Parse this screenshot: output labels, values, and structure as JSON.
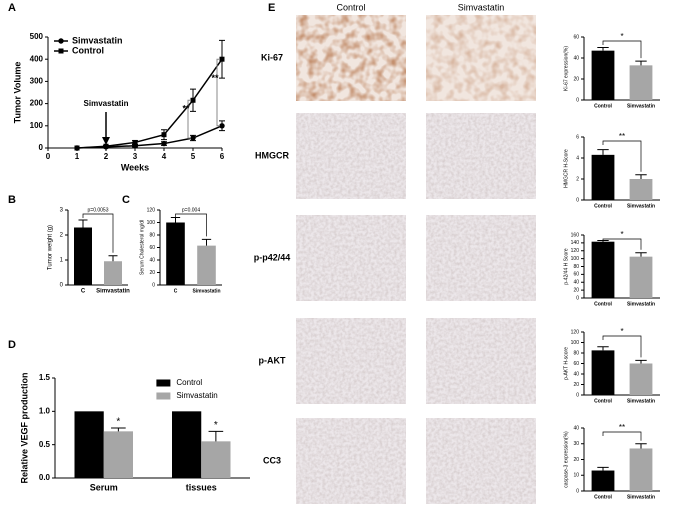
{
  "panel_labels": [
    "A",
    "B",
    "C",
    "D",
    "E"
  ],
  "images": {
    "columns": [
      "Control",
      "Simvastatin"
    ],
    "rows": [
      "Ki-67",
      "HMGCR",
      "p-p42/44",
      "p-AKT",
      "CC3"
    ]
  },
  "chart_data": [
    {
      "type": "line",
      "y_label": "Tumor Volume",
      "x_label": "Weeks",
      "x": [
        1,
        2,
        3,
        4,
        5,
        6
      ],
      "series": [
        {
          "name": "Simvastatin",
          "color": "#000000",
          "marker": "circle",
          "values": [
            0,
            5,
            10,
            20,
            45,
            100
          ],
          "errors": [
            0,
            3,
            5,
            8,
            12,
            22
          ]
        },
        {
          "name": "Control",
          "color": "#000000",
          "marker": "square",
          "values": [
            0,
            8,
            25,
            60,
            215,
            400
          ],
          "errors": [
            0,
            4,
            8,
            22,
            50,
            85
          ]
        }
      ],
      "xlim": [
        0,
        6
      ],
      "xticks": [
        0,
        1,
        2,
        3,
        4,
        5,
        6
      ],
      "ylim": [
        0,
        500
      ],
      "yticks": [
        0,
        100,
        200,
        300,
        400,
        500
      ],
      "legend": "upper left",
      "annotations": [
        "Simvastatin",
        "**",
        "**"
      ]
    },
    {
      "type": "bar",
      "y_label": "Tumor weight (g)",
      "categories": [
        "C",
        "Simvastatin"
      ],
      "values": [
        2.3,
        0.95
      ],
      "errors": [
        0.3,
        0.22
      ],
      "colors": [
        "#000000",
        "#a6a6a6"
      ],
      "ylim": [
        0,
        3
      ],
      "yticks": [
        0,
        1,
        2,
        3
      ],
      "annotations": [
        "p=0.0053"
      ]
    },
    {
      "type": "bar",
      "y_label": "Serum Cholesterol mg/dl",
      "categories": [
        "C",
        "Simvastatin"
      ],
      "values": [
        100,
        63
      ],
      "errors": [
        8,
        10
      ],
      "colors": [
        "#000000",
        "#a6a6a6"
      ],
      "ylim": [
        0,
        120
      ],
      "yticks": [
        0,
        20,
        40,
        60,
        80,
        100,
        120
      ],
      "annotations": [
        "p=0.004"
      ]
    },
    {
      "type": "bar",
      "y_label": "Relative VEGF production",
      "categories": [
        "Serum",
        "tissues"
      ],
      "series": [
        {
          "name": "Control",
          "color": "#000000",
          "values": [
            1,
            1
          ],
          "errors": [
            0,
            0
          ]
        },
        {
          "name": "Simvastatin",
          "color": "#a6a6a6",
          "values": [
            0.7,
            0.55
          ],
          "errors": [
            0.05,
            0.15
          ]
        }
      ],
      "ylim": [
        0,
        1.5
      ],
      "yticks": [
        {
          "value": 0,
          "label": "0.0"
        },
        0.5,
        {
          "value": 1,
          "label": "1.0"
        },
        1.5
      ],
      "legend": "upper right",
      "annotations": [
        "*",
        "*"
      ]
    },
    {
      "type": "bar",
      "y_label": "Ki-67 expression(%)",
      "categories": [
        "Control",
        "Simvastatin"
      ],
      "values": [
        47,
        33
      ],
      "errors": [
        3,
        4
      ],
      "colors": [
        "#000000",
        "#a6a6a6"
      ],
      "ylim": [
        0,
        60
      ],
      "yticks": [
        0,
        20,
        40,
        60
      ],
      "annotations": [
        "*"
      ]
    },
    {
      "type": "bar",
      "y_label": "HMGCR H-Score",
      "categories": [
        "Control",
        "Simvastatin"
      ],
      "values": [
        4.3,
        2.0
      ],
      "errors": [
        0.5,
        0.4
      ],
      "colors": [
        "#000000",
        "#a6a6a6"
      ],
      "ylim": [
        0,
        6
      ],
      "yticks": [
        0,
        2,
        4,
        6
      ],
      "annotations": [
        "**"
      ]
    },
    {
      "type": "bar",
      "y_label": "p-42/44 H Score",
      "categories": [
        "Control",
        "Simvastatin"
      ],
      "values": [
        143,
        105
      ],
      "errors": [
        3,
        10
      ],
      "colors": [
        "#000000",
        "#a6a6a6"
      ],
      "ylim": [
        0,
        160
      ],
      "yticks": [
        0,
        20,
        40,
        60,
        80,
        100,
        120,
        140,
        160
      ],
      "annotations": [
        "*"
      ]
    },
    {
      "type": "bar",
      "y_label": "p-AKT H-score",
      "categories": [
        "Control",
        "Simvastatin"
      ],
      "values": [
        85,
        60
      ],
      "errors": [
        7,
        6
      ],
      "colors": [
        "#000000",
        "#a6a6a6"
      ],
      "ylim": [
        0,
        120
      ],
      "yticks": [
        0,
        20,
        40,
        60,
        80,
        100,
        120
      ],
      "annotations": [
        "*"
      ]
    },
    {
      "type": "bar",
      "y_label": "caspase-3 expression(%)",
      "categories": [
        "Control",
        "Simvastatin"
      ],
      "values": [
        13,
        27
      ],
      "errors": [
        2,
        3
      ],
      "colors": [
        "#000000",
        "#a6a6a6"
      ],
      "ylim": [
        0,
        40
      ],
      "yticks": [
        0,
        10,
        20,
        30,
        40
      ],
      "annotations": [
        "**"
      ]
    }
  ]
}
